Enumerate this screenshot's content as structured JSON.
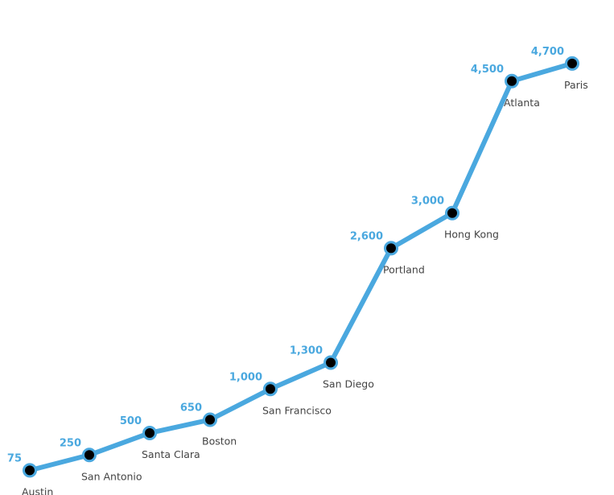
{
  "chart_data": {
    "type": "line",
    "categories": [
      "Austin",
      "San Antonio",
      "Santa Clara",
      "Boston",
      "San Francisco",
      "San Diego",
      "Portland",
      "Hong Kong",
      "Atlanta",
      "Paris"
    ],
    "values": [
      75,
      250,
      500,
      650,
      1000,
      1300,
      2600,
      3000,
      4500,
      4700
    ],
    "value_labels": [
      "75",
      "250",
      "500",
      "650",
      "1,000",
      "1,300",
      "2,600",
      "3,000",
      "4,500",
      "4,700"
    ],
    "title": "",
    "xlabel": "",
    "ylabel": "",
    "grid": false,
    "legend": "none",
    "axes_visible": false
  },
  "colors": {
    "line": "#4aa8df",
    "marker_fill": "#000000",
    "marker_stroke": "#4aa8df",
    "value_label": "#4aa8df",
    "category_label": "#444444"
  }
}
